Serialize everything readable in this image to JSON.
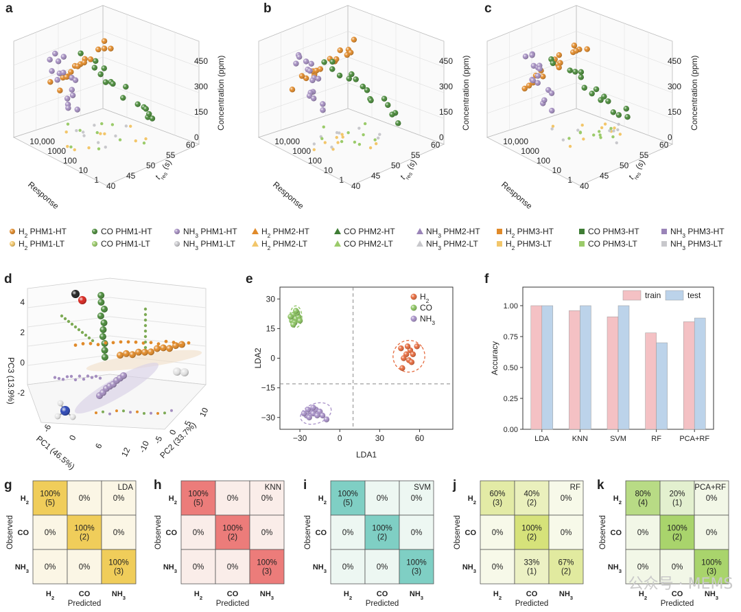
{
  "panel_labels": [
    "a",
    "b",
    "c",
    "d",
    "e",
    "f",
    "g",
    "h",
    "i",
    "j",
    "k"
  ],
  "panels_3d": [
    {
      "label": "a",
      "response_ticks": [
        "10,000",
        "1000",
        "100",
        "10",
        "1"
      ],
      "response_label": "Response",
      "tres_ticks": [
        "40",
        "45",
        "50",
        "55",
        "60"
      ],
      "tres_label": "t_res (s)",
      "conc_ticks": [
        "0",
        "150",
        "300",
        "450"
      ],
      "conc_label": "Concentration (ppm)"
    },
    {
      "label": "b",
      "response_ticks": [
        "10,000",
        "1000",
        "100",
        "10",
        "1"
      ],
      "response_label": "Response",
      "tres_ticks": [
        "40",
        "45",
        "50",
        "55",
        "60"
      ],
      "tres_label": "t_res (s)",
      "conc_ticks": [
        "0",
        "150",
        "300",
        "450"
      ],
      "conc_label": "Concentration (ppm)"
    },
    {
      "label": "c",
      "response_ticks": [
        "10,000",
        "1000",
        "100",
        "10",
        "1"
      ],
      "response_label": "Response",
      "tres_ticks": [
        "40",
        "45",
        "50",
        "55",
        "60"
      ],
      "tres_label": "t_res (s)",
      "conc_ticks": [
        "0",
        "150",
        "300",
        "450"
      ],
      "conc_label": "Concentration (ppm)"
    }
  ],
  "legend": [
    {
      "gas": "H2",
      "label": "PHM1-HT",
      "shape": "circle",
      "color": "#e08a2a"
    },
    {
      "gas": "CO",
      "label": "PHM1-HT",
      "shape": "circle",
      "color": "#4a8a3a"
    },
    {
      "gas": "NH3",
      "label": "PHM1-HT",
      "shape": "circle",
      "color": "#a48ec0"
    },
    {
      "gas": "H2",
      "label": "PHM2-HT",
      "shape": "triangle",
      "color": "#e08a2a"
    },
    {
      "gas": "CO",
      "label": "PHM2-HT",
      "shape": "triangle",
      "color": "#3f7d35"
    },
    {
      "gas": "NH3",
      "label": "PHM2-HT",
      "shape": "triangle",
      "color": "#9a84b8"
    },
    {
      "gas": "H2",
      "label": "PHM3-HT",
      "shape": "square",
      "color": "#e08a2a"
    },
    {
      "gas": "CO",
      "label": "PHM3-HT",
      "shape": "square",
      "color": "#3f7d35"
    },
    {
      "gas": "NH3",
      "label": "PHM3-HT",
      "shape": "square",
      "color": "#9a84b8"
    },
    {
      "gas": "H2",
      "label": "PHM1-LT",
      "shape": "circle",
      "color": "#f2c66a"
    },
    {
      "gas": "CO",
      "label": "PHM1-LT",
      "shape": "circle",
      "color": "#9bcb6a"
    },
    {
      "gas": "NH3",
      "label": "PHM1-LT",
      "shape": "circle",
      "color": "#c8c8cc"
    },
    {
      "gas": "H2",
      "label": "PHM2-LT",
      "shape": "triangle",
      "color": "#f2c66a"
    },
    {
      "gas": "CO",
      "label": "PHM2-LT",
      "shape": "triangle",
      "color": "#9bcb6a"
    },
    {
      "gas": "NH3",
      "label": "PHM2-LT",
      "shape": "triangle",
      "color": "#c8c8cc"
    },
    {
      "gas": "H2",
      "label": "PHM3-LT",
      "shape": "square",
      "color": "#f2c66a"
    },
    {
      "gas": "CO",
      "label": "PHM3-LT",
      "shape": "square",
      "color": "#9bcb6a"
    },
    {
      "gas": "NH3",
      "label": "PHM3-LT",
      "shape": "square",
      "color": "#c8c8cc"
    }
  ],
  "panel_d": {
    "xlabel": "PC1 (46.5%)",
    "ylabel": "PC2 (33.7%)",
    "zlabel": "PC3 (13.9%)",
    "x_ticks": [
      "-6",
      "0",
      "6",
      "12"
    ],
    "y_ticks": [
      "-10",
      "-5",
      "0",
      "5",
      "10"
    ],
    "z_ticks": [
      "4",
      "2",
      "0",
      "-2"
    ]
  },
  "chart_data": [
    {
      "type": "scatter",
      "panel": "e",
      "xlabel": "LDA1",
      "ylabel": "LDA2",
      "xlim": [
        -45,
        85
      ],
      "ylim": [
        -36,
        36
      ],
      "x_ticks": [
        -30,
        0,
        30,
        60
      ],
      "y_ticks": [
        30,
        15,
        0,
        -15,
        -30
      ],
      "x_tick_labels": [
        "−30",
        "0",
        "30",
        "60"
      ],
      "y_tick_labels": [
        "30",
        "15",
        "0",
        "−15",
        "−30"
      ],
      "divider_x": 10,
      "divider_y": -13,
      "legend": [
        "H2",
        "CO",
        "NH3"
      ],
      "series": [
        {
          "name": "H2",
          "color": "#e56b3e",
          "points": [
            [
              46,
              5
            ],
            [
              50,
              2
            ],
            [
              53,
              4
            ],
            [
              48,
              0
            ],
            [
              52,
              -1
            ],
            [
              55,
              2
            ],
            [
              58,
              6
            ],
            [
              51,
              6
            ],
            [
              47,
              -5
            ],
            [
              54,
              -2
            ]
          ],
          "ellipse": {
            "cx": 52,
            "cy": 1,
            "rx": 12,
            "ry": 8,
            "rot": -35
          }
        },
        {
          "name": "CO",
          "color": "#8cc461",
          "points": [
            [
              -35,
              22
            ],
            [
              -33,
              20
            ],
            [
              -31,
              21
            ],
            [
              -36,
              19
            ],
            [
              -32,
              23
            ],
            [
              -34,
              18
            ],
            [
              -30,
              19
            ],
            [
              -37,
              21
            ],
            [
              -33,
              24
            ],
            [
              -35,
              17
            ]
          ],
          "ellipse": {
            "cx": -33,
            "cy": 21,
            "rx": 4.5,
            "ry": 5.5,
            "rot": 0
          }
        },
        {
          "name": "NH3",
          "color": "#a891c8",
          "points": [
            [
              -25,
              -29
            ],
            [
              -22,
              -27
            ],
            [
              -20,
              -28
            ],
            [
              -23,
              -30
            ],
            [
              -18,
              -26
            ],
            [
              -15,
              -27
            ],
            [
              -13,
              -29
            ],
            [
              -27,
              -28
            ],
            [
              -20,
              -25
            ],
            [
              -10,
              -31
            ],
            [
              -17,
              -29
            ],
            [
              -24,
              -26
            ]
          ],
          "ellipse": {
            "cx": -18,
            "cy": -28,
            "rx": 12,
            "ry": 5,
            "rot": -20
          }
        }
      ]
    },
    {
      "type": "bar",
      "panel": "f",
      "ylabel": "Accuracy",
      "ylim": [
        0,
        1.15
      ],
      "y_ticks": [
        0,
        0.25,
        0.5,
        0.75,
        1.0
      ],
      "y_tick_labels": [
        "0.00",
        "0.25",
        "0.50",
        "0.75",
        "1.00"
      ],
      "categories": [
        "LDA",
        "KNN",
        "SVM",
        "RF",
        "PCA+RF"
      ],
      "series": [
        {
          "name": "train",
          "color": "#f4c1c4",
          "values": [
            1.0,
            0.96,
            0.91,
            0.78,
            0.87
          ]
        },
        {
          "name": "test",
          "color": "#bcd3ea",
          "values": [
            1.0,
            1.0,
            1.0,
            0.7,
            0.9
          ]
        }
      ]
    },
    {
      "type": "heatmap",
      "panels": [
        {
          "label": "g",
          "title": "LDA",
          "color": "#f0cd5a",
          "cells": [
            [
              "100%\n(5)",
              "0%",
              "0%"
            ],
            [
              "0%",
              "100%\n(2)",
              "0%"
            ],
            [
              "0%",
              "0%",
              "100%\n(3)"
            ]
          ],
          "intensity": [
            [
              1,
              0,
              0
            ],
            [
              0,
              1,
              0
            ],
            [
              0,
              0,
              1
            ]
          ]
        },
        {
          "label": "h",
          "title": "KNN",
          "color": "#ec7c7a",
          "cells": [
            [
              "100%\n(5)",
              "0%",
              "0%"
            ],
            [
              "0%",
              "100%\n(2)",
              "0%"
            ],
            [
              "0%",
              "0%",
              "100%\n(3)"
            ]
          ],
          "intensity": [
            [
              1,
              0,
              0
            ],
            [
              0,
              1,
              0
            ],
            [
              0,
              0,
              1
            ]
          ]
        },
        {
          "label": "i",
          "title": "SVM",
          "color": "#7fcfc4",
          "cells": [
            [
              "100%\n(5)",
              "0%",
              "0%"
            ],
            [
              "0%",
              "100%\n(2)",
              "0%"
            ],
            [
              "0%",
              "0%",
              "100%\n(3)"
            ]
          ],
          "intensity": [
            [
              1,
              0,
              0
            ],
            [
              0,
              1,
              0
            ],
            [
              0,
              0,
              1
            ]
          ]
        },
        {
          "label": "j",
          "title": "RF",
          "color": "#d6e27a",
          "cells": [
            [
              "60%\n(3)",
              "40%\n(2)",
              "0%"
            ],
            [
              "0%",
              "100%\n(2)",
              "0%"
            ],
            [
              "0%",
              "33%\n(1)",
              "67%\n(2)"
            ]
          ],
          "intensity": [
            [
              0.6,
              0.4,
              0
            ],
            [
              0,
              1,
              0
            ],
            [
              0,
              0.33,
              0.67
            ]
          ]
        },
        {
          "label": "k",
          "title": "PCA+RF",
          "color": "#a9d46c",
          "cells": [
            [
              "80%\n(4)",
              "20%\n(1)",
              "0%"
            ],
            [
              "0%",
              "100%\n(2)",
              "0%"
            ],
            [
              "0%",
              "0%",
              "100%\n(3)"
            ]
          ],
          "intensity": [
            [
              0.8,
              0.2,
              0
            ],
            [
              0,
              1,
              0
            ],
            [
              0,
              0,
              1
            ]
          ]
        }
      ],
      "row_labels": [
        "H2",
        "CO",
        "NH3"
      ],
      "col_labels": [
        "H2",
        "CO",
        "NH3"
      ],
      "xlabel": "Predicted",
      "ylabel": "Observed"
    }
  ],
  "watermark": "公众号 · MEMS"
}
